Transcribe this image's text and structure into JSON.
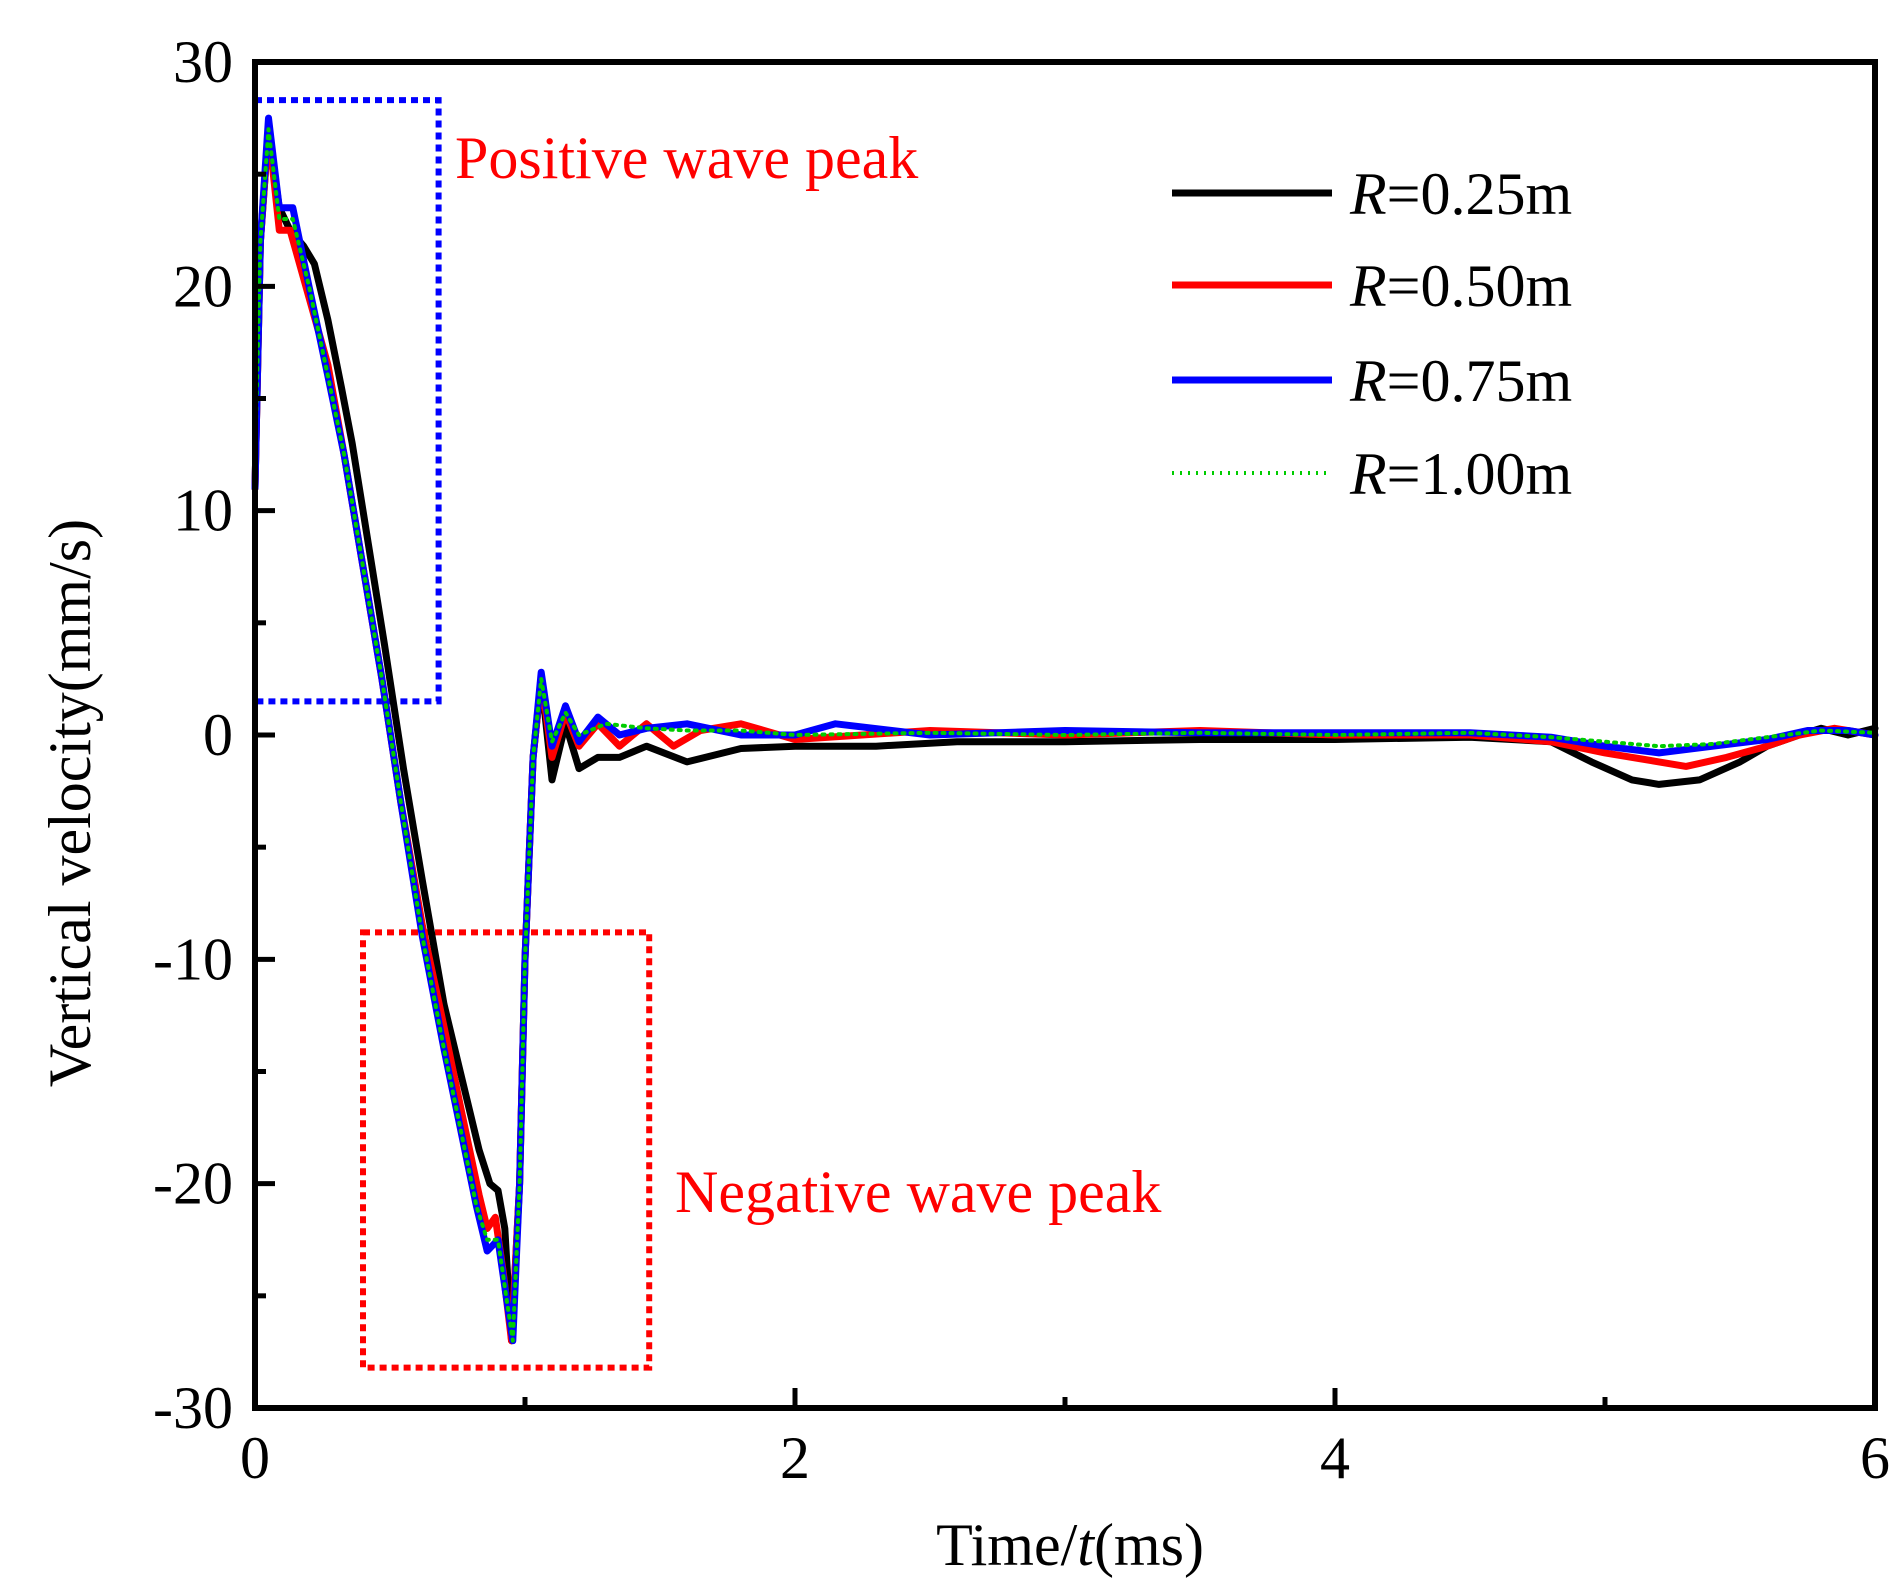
{
  "chart_data": {
    "type": "line",
    "title": "",
    "xlabel_prefix": "Time/",
    "xlabel_var": "t",
    "xlabel_suffix": "(ms)",
    "ylabel": "Vertical velocity(mm/s)",
    "xlim": [
      0,
      6
    ],
    "ylim": [
      -30,
      30
    ],
    "x_ticks": [
      0,
      2,
      4,
      6
    ],
    "x_tick_labels": [
      "0",
      "2",
      "4",
      "6"
    ],
    "x_minor_ticks": [
      1,
      3,
      5
    ],
    "y_ticks": [
      -30,
      -20,
      -10,
      0,
      10,
      20,
      30
    ],
    "y_tick_labels": [
      "-30",
      "-20",
      "-10",
      "0",
      "10",
      "20",
      "30"
    ],
    "y_minor_ticks": [
      -25,
      -15,
      -5,
      5,
      15,
      25
    ],
    "legend_position": "top-right",
    "series": [
      {
        "name": "R=0.25m",
        "var": "R",
        "value_label": "=0.25m",
        "color": "#000000",
        "style": "solid",
        "points": [
          [
            0,
            11
          ],
          [
            0.02,
            22
          ],
          [
            0.05,
            27
          ],
          [
            0.09,
            23.5
          ],
          [
            0.13,
            22.5
          ],
          [
            0.18,
            21.8
          ],
          [
            0.22,
            21
          ],
          [
            0.27,
            18.5
          ],
          [
            0.32,
            15.5
          ],
          [
            0.36,
            13
          ],
          [
            0.42,
            8.5
          ],
          [
            0.48,
            4
          ],
          [
            0.55,
            -1.5
          ],
          [
            0.62,
            -6.5
          ],
          [
            0.7,
            -12
          ],
          [
            0.78,
            -16
          ],
          [
            0.83,
            -18.5
          ],
          [
            0.87,
            -20
          ],
          [
            0.9,
            -20.3
          ],
          [
            0.925,
            -22
          ],
          [
            0.95,
            -27
          ],
          [
            0.98,
            -20
          ],
          [
            1.0,
            -10
          ],
          [
            1.03,
            -1
          ],
          [
            1.06,
            2.5
          ],
          [
            1.1,
            -2
          ],
          [
            1.15,
            0.5
          ],
          [
            1.2,
            -1.5
          ],
          [
            1.27,
            -1
          ],
          [
            1.35,
            -1
          ],
          [
            1.45,
            -0.5
          ],
          [
            1.6,
            -1.2
          ],
          [
            1.8,
            -0.6
          ],
          [
            2.0,
            -0.5
          ],
          [
            2.3,
            -0.5
          ],
          [
            2.6,
            -0.3
          ],
          [
            3.0,
            -0.3
          ],
          [
            3.5,
            -0.2
          ],
          [
            4.0,
            -0.2
          ],
          [
            4.5,
            -0.1
          ],
          [
            4.8,
            -0.3
          ],
          [
            4.95,
            -1.2
          ],
          [
            5.1,
            -2
          ],
          [
            5.2,
            -2.2
          ],
          [
            5.35,
            -2
          ],
          [
            5.5,
            -1.2
          ],
          [
            5.6,
            -0.5
          ],
          [
            5.72,
            0
          ],
          [
            5.8,
            0.3
          ],
          [
            5.9,
            0
          ],
          [
            6.0,
            0.3
          ]
        ]
      },
      {
        "name": "R=0.50m",
        "var": "R",
        "value_label": "=0.50m",
        "color": "#ff0000",
        "style": "solid",
        "points": [
          [
            0,
            11
          ],
          [
            0.02,
            22
          ],
          [
            0.05,
            27
          ],
          [
            0.09,
            22.5
          ],
          [
            0.13,
            22.5
          ],
          [
            0.2,
            19.5
          ],
          [
            0.27,
            16.5
          ],
          [
            0.33,
            12.5
          ],
          [
            0.4,
            7.5
          ],
          [
            0.47,
            2.5
          ],
          [
            0.54,
            -3
          ],
          [
            0.62,
            -8.5
          ],
          [
            0.7,
            -13
          ],
          [
            0.76,
            -16.5
          ],
          [
            0.83,
            -20.5
          ],
          [
            0.86,
            -22
          ],
          [
            0.89,
            -21.5
          ],
          [
            0.92,
            -24
          ],
          [
            0.95,
            -27
          ],
          [
            0.98,
            -20
          ],
          [
            1.0,
            -10
          ],
          [
            1.03,
            -1
          ],
          [
            1.06,
            2.5
          ],
          [
            1.1,
            -1
          ],
          [
            1.15,
            1
          ],
          [
            1.2,
            -0.5
          ],
          [
            1.27,
            0.5
          ],
          [
            1.35,
            -0.5
          ],
          [
            1.45,
            0.5
          ],
          [
            1.55,
            -0.5
          ],
          [
            1.65,
            0.2
          ],
          [
            1.8,
            0.5
          ],
          [
            2.0,
            -0.2
          ],
          [
            2.5,
            0.2
          ],
          [
            3.0,
            0
          ],
          [
            3.5,
            0.2
          ],
          [
            4.0,
            0
          ],
          [
            4.5,
            0
          ],
          [
            4.8,
            -0.3
          ],
          [
            5.0,
            -0.8
          ],
          [
            5.2,
            -1.2
          ],
          [
            5.3,
            -1.4
          ],
          [
            5.45,
            -1
          ],
          [
            5.6,
            -0.5
          ],
          [
            5.72,
            0
          ],
          [
            5.85,
            0.3
          ],
          [
            6.0,
            0
          ]
        ]
      },
      {
        "name": "R=0.75m",
        "var": "R",
        "value_label": "=0.75m",
        "color": "#0000ff",
        "style": "solid",
        "points": [
          [
            0,
            11
          ],
          [
            0.02,
            22
          ],
          [
            0.05,
            27.5
          ],
          [
            0.09,
            23.5
          ],
          [
            0.14,
            23.5
          ],
          [
            0.2,
            20
          ],
          [
            0.27,
            16
          ],
          [
            0.33,
            12.5
          ],
          [
            0.4,
            7.5
          ],
          [
            0.47,
            2.5
          ],
          [
            0.54,
            -3
          ],
          [
            0.62,
            -9
          ],
          [
            0.7,
            -14
          ],
          [
            0.76,
            -17.5
          ],
          [
            0.82,
            -21
          ],
          [
            0.86,
            -23
          ],
          [
            0.9,
            -22.5
          ],
          [
            0.93,
            -25
          ],
          [
            0.955,
            -27
          ],
          [
            0.98,
            -20
          ],
          [
            1.0,
            -10
          ],
          [
            1.03,
            -1
          ],
          [
            1.06,
            2.8
          ],
          [
            1.1,
            -0.5
          ],
          [
            1.15,
            1.3
          ],
          [
            1.2,
            -0.3
          ],
          [
            1.27,
            0.8
          ],
          [
            1.35,
            0
          ],
          [
            1.45,
            0.3
          ],
          [
            1.6,
            0.5
          ],
          [
            1.8,
            0
          ],
          [
            2.0,
            0
          ],
          [
            2.15,
            0.5
          ],
          [
            2.5,
            0
          ],
          [
            3.0,
            0.2
          ],
          [
            3.5,
            0.1
          ],
          [
            4.0,
            0.1
          ],
          [
            4.5,
            0.1
          ],
          [
            4.8,
            -0.1
          ],
          [
            5.0,
            -0.5
          ],
          [
            5.2,
            -0.8
          ],
          [
            5.4,
            -0.5
          ],
          [
            5.6,
            -0.2
          ],
          [
            5.75,
            0.2
          ],
          [
            5.9,
            0.2
          ],
          [
            6.0,
            0
          ]
        ]
      },
      {
        "name": "R=1.00m",
        "var": "R",
        "value_label": "=1.00m",
        "color": "#00cc00",
        "style": "dotted",
        "points": [
          [
            0,
            12
          ],
          [
            0.02,
            22
          ],
          [
            0.05,
            27
          ],
          [
            0.09,
            23
          ],
          [
            0.14,
            23
          ],
          [
            0.2,
            20
          ],
          [
            0.27,
            16
          ],
          [
            0.33,
            12.5
          ],
          [
            0.4,
            7.5
          ],
          [
            0.47,
            2.5
          ],
          [
            0.54,
            -3
          ],
          [
            0.62,
            -9
          ],
          [
            0.7,
            -14
          ],
          [
            0.76,
            -17.5
          ],
          [
            0.82,
            -21
          ],
          [
            0.86,
            -22.5
          ],
          [
            0.9,
            -22.5
          ],
          [
            0.93,
            -25
          ],
          [
            0.955,
            -27
          ],
          [
            0.98,
            -20
          ],
          [
            1.0,
            -10
          ],
          [
            1.03,
            -1
          ],
          [
            1.06,
            2.5
          ],
          [
            1.1,
            -0.3
          ],
          [
            1.15,
            1
          ],
          [
            1.2,
            0
          ],
          [
            1.3,
            0.5
          ],
          [
            1.45,
            0.3
          ],
          [
            1.6,
            0.2
          ],
          [
            1.8,
            0.2
          ],
          [
            2.0,
            0
          ],
          [
            2.5,
            0.1
          ],
          [
            3.0,
            0
          ],
          [
            3.5,
            0.1
          ],
          [
            4.0,
            0
          ],
          [
            4.5,
            0.1
          ],
          [
            4.8,
            -0.1
          ],
          [
            5.0,
            -0.3
          ],
          [
            5.2,
            -0.5
          ],
          [
            5.4,
            -0.4
          ],
          [
            5.6,
            -0.1
          ],
          [
            5.8,
            0.2
          ],
          [
            6.0,
            0.1
          ]
        ]
      }
    ],
    "annotations": [
      {
        "text": "Positive wave peak",
        "color": "#ff0000",
        "box_color": "#0000ff",
        "box_range": {
          "x": [
            0,
            0.68
          ],
          "y": [
            1.5,
            28.3
          ]
        }
      },
      {
        "text": "Negative wave peak",
        "color": "#ff0000",
        "box_color": "#ff0000",
        "box_range": {
          "x": [
            0.4,
            1.46
          ],
          "y": [
            -28.2,
            -8.8
          ]
        }
      }
    ]
  }
}
